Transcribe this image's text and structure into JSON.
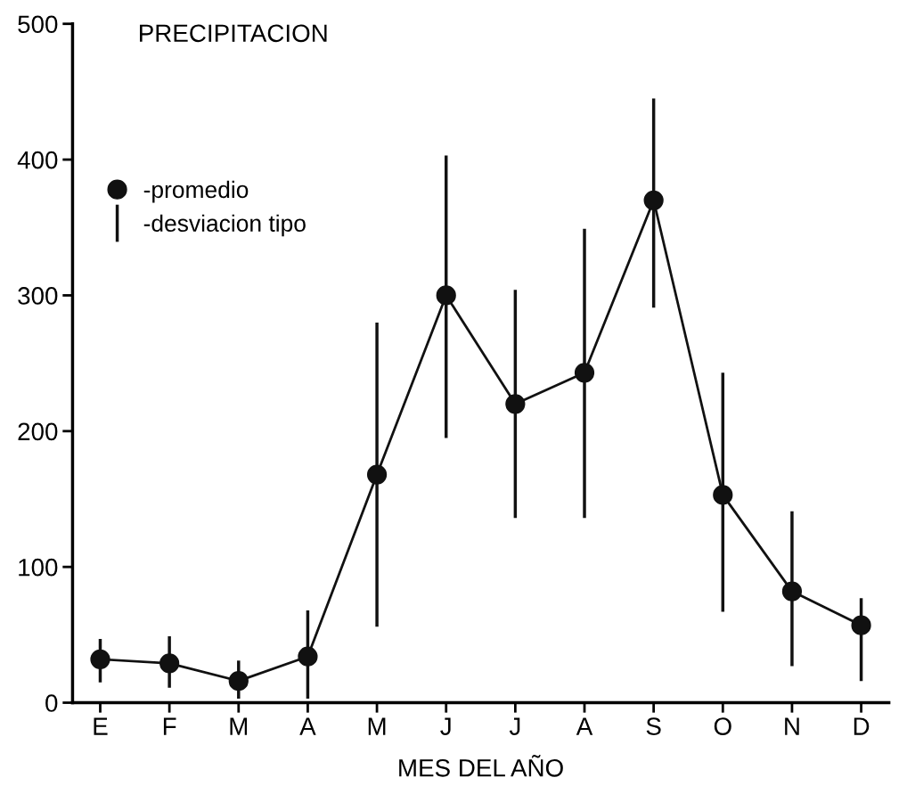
{
  "chart_data": {
    "type": "line",
    "title": "PRECIPITACION",
    "xlabel": "MES DEL AÑO",
    "categories": [
      "E",
      "F",
      "M",
      "A",
      "M",
      "J",
      "J",
      "A",
      "S",
      "O",
      "N",
      "D"
    ],
    "series": [
      {
        "name": "-promedio",
        "color": "#111111",
        "values": [
          32,
          29,
          16,
          34,
          168,
          300,
          220,
          243,
          370,
          153,
          82,
          57
        ],
        "errors": [
          [
            15,
            47
          ],
          [
            11,
            49
          ],
          [
            3,
            31
          ],
          [
            3,
            68
          ],
          [
            56,
            280
          ],
          [
            195,
            403
          ],
          [
            136,
            304
          ],
          [
            136,
            349
          ],
          [
            291,
            445
          ],
          [
            67,
            243
          ],
          [
            27,
            141
          ],
          [
            16,
            77
          ]
        ]
      }
    ],
    "annotations": [
      "-desviacion tipo"
    ],
    "ylim": [
      0,
      500
    ],
    "yticks": [
      0,
      100,
      200,
      300,
      400,
      500
    ],
    "grid": false,
    "legend": "top left",
    "marker": "circle",
    "line_style": "solid"
  }
}
